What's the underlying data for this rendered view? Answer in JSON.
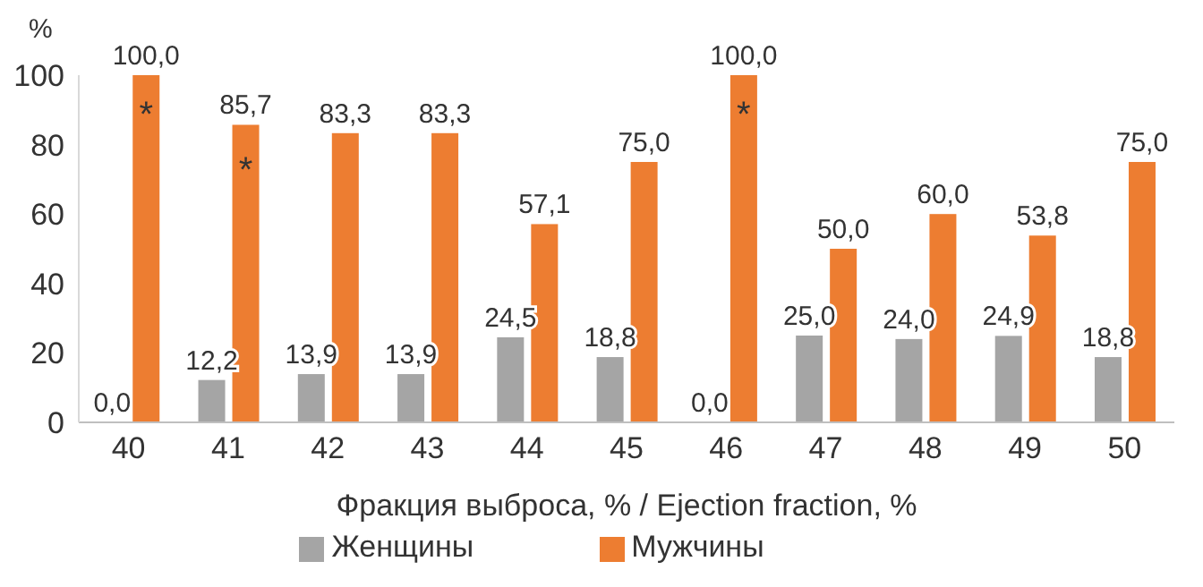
{
  "chart_data": {
    "type": "bar",
    "ylabel": "%",
    "xlabel": "Фракция выброса, % / Ejection fraction, %",
    "categories": [
      "40",
      "41",
      "42",
      "43",
      "44",
      "45",
      "46",
      "47",
      "48",
      "49",
      "50"
    ],
    "series": [
      {
        "name": "Женщины",
        "color": "#a5a5a5",
        "values": [
          0,
          12.2,
          13.9,
          13.9,
          24.5,
          18.8,
          0,
          25.0,
          24.0,
          24.9,
          18.8
        ],
        "value_labels": [
          "0,0",
          "12,2",
          "13,9",
          "13,9",
          "24,5",
          "18,8",
          "0,0",
          "25,0",
          "24,0",
          "24,9",
          "18,8"
        ]
      },
      {
        "name": "Мужчины",
        "color": "#ed7d31",
        "values": [
          100,
          85.7,
          83.3,
          83.3,
          57.1,
          75.0,
          100,
          50.0,
          60.0,
          53.8,
          75.0
        ],
        "value_labels": [
          "100,0",
          "85,7",
          "83,3",
          "83,3",
          "57,1",
          "75,0",
          "100,0",
          "50,0",
          "60,0",
          "53,8",
          "75,0"
        ]
      }
    ],
    "annotations": [
      {
        "text": "*",
        "x": "40",
        "y": 88
      },
      {
        "text": "*",
        "x": "41",
        "y": 72
      },
      {
        "text": "*",
        "x": "46",
        "y": 88
      }
    ],
    "ylim": [
      0,
      100
    ],
    "yticks": [
      0,
      20,
      40,
      60,
      80,
      100
    ],
    "grid": false,
    "legend": "bottom"
  }
}
